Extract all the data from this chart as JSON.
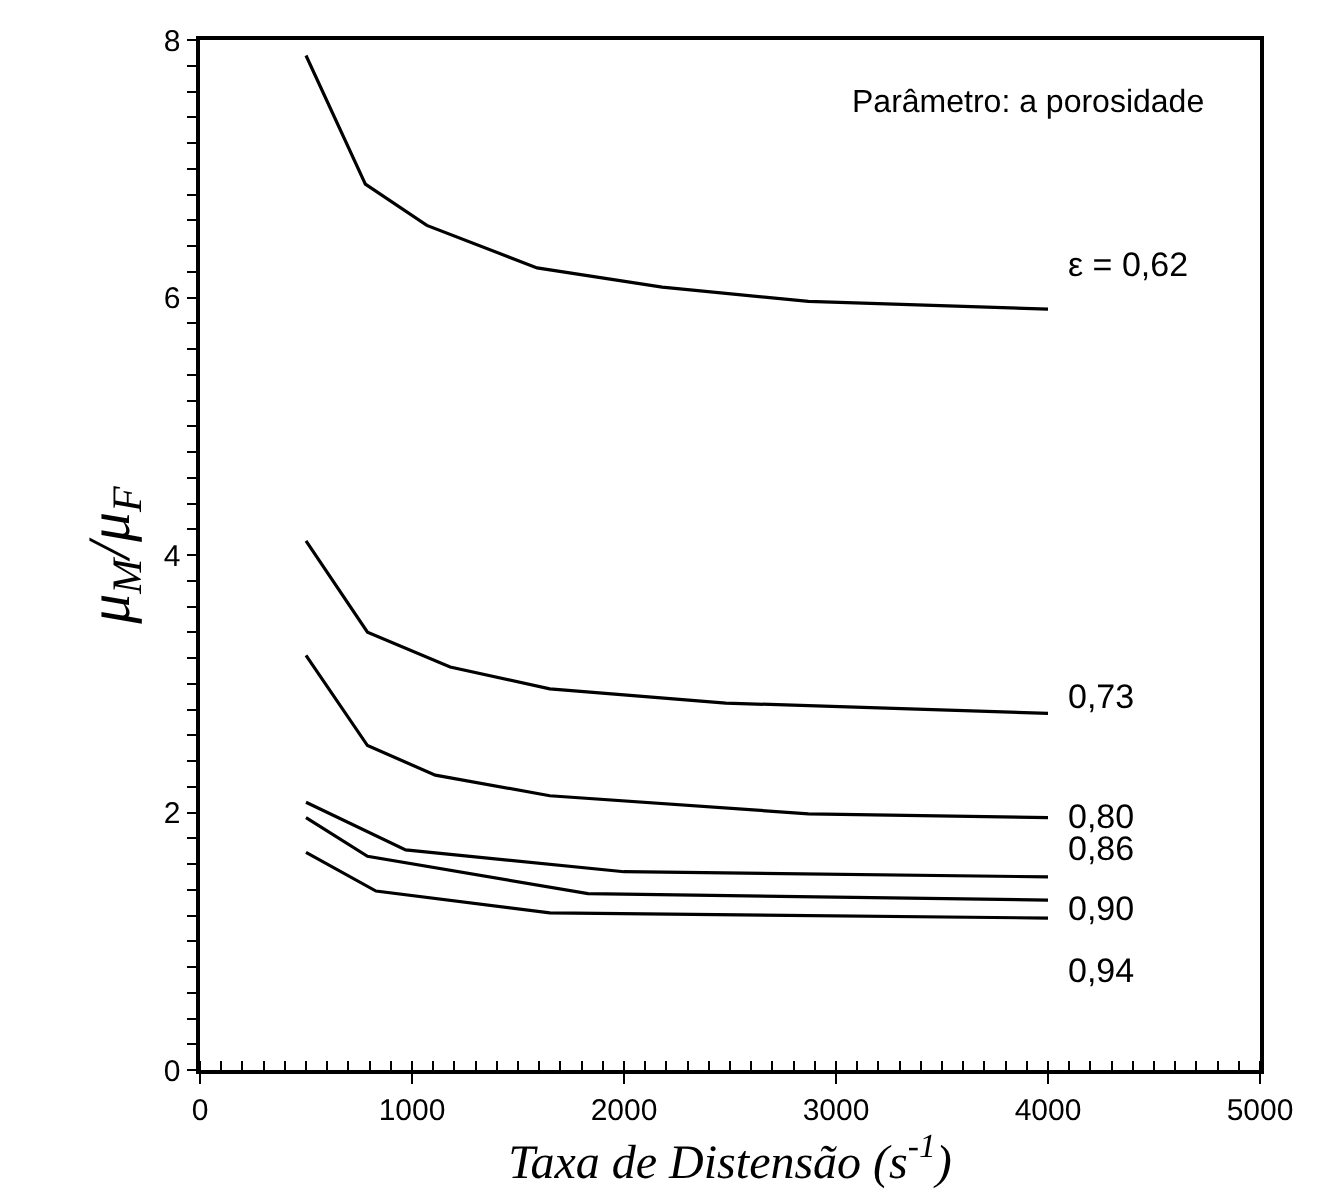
{
  "chart_data": {
    "type": "line",
    "xlabel": "Taxa de Distensão (s$^{-1}$)",
    "ylabel": "μ$_{M}$/μ$_{F}$",
    "xlim": [
      0,
      5000
    ],
    "xticks": [
      0,
      1000,
      2000,
      3000,
      4000,
      5000
    ],
    "ylim": [
      0,
      8
    ],
    "yticks": [
      0,
      2,
      4,
      6,
      8
    ],
    "legend": false,
    "marker": "none",
    "line_style": "solid",
    "series": [
      {
        "name": "ε = 0,62",
        "color": "#000000",
        "x": [
          500,
          780,
          1070,
          1590,
          2180,
          2870,
          4000
        ],
        "values": [
          7.88,
          6.88,
          6.56,
          6.23,
          6.08,
          5.97,
          5.91
        ]
      },
      {
        "name": "0,73",
        "color": "#000000",
        "x": [
          500,
          790,
          1180,
          1650,
          2480,
          4000
        ],
        "values": [
          4.11,
          3.4,
          3.13,
          2.96,
          2.85,
          2.77
        ]
      },
      {
        "name": "0,80",
        "color": "#000000",
        "x": [
          500,
          790,
          1110,
          1650,
          2870,
          4000
        ],
        "values": [
          3.22,
          2.52,
          2.29,
          2.13,
          1.99,
          1.96
        ]
      },
      {
        "name": "0,86",
        "color": "#000000",
        "x": [
          500,
          970,
          2000,
          4000
        ],
        "values": [
          2.08,
          1.71,
          1.54,
          1.5
        ]
      },
      {
        "name": "0,90",
        "color": "#000000",
        "x": [
          500,
          790,
          1830,
          4000
        ],
        "values": [
          1.96,
          1.66,
          1.37,
          1.32
        ]
      },
      {
        "name": "0,94",
        "color": "#000000",
        "x": [
          500,
          830,
          1650,
          4000
        ],
        "values": [
          1.69,
          1.39,
          1.22,
          1.18
        ]
      }
    ],
    "annotations": [
      "Parâmetro: a porosidade"
    ]
  }
}
